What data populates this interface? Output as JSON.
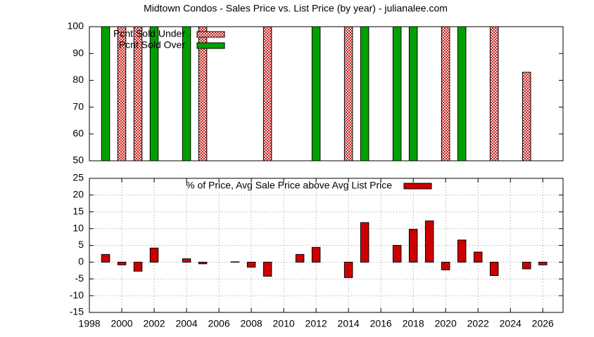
{
  "chart_data": [
    {
      "type": "bar",
      "title": "Midtown Condos - Sales Price vs. List Price (by year) - julianalee.com",
      "x": [
        1999,
        2000,
        2001,
        2002,
        2003,
        2004,
        2005,
        2006,
        2007,
        2008,
        2009,
        2010,
        2011,
        2012,
        2013,
        2014,
        2015,
        2016,
        2017,
        2018,
        2019,
        2020,
        2021,
        2022,
        2023,
        2024,
        2025,
        2026
      ],
      "series": [
        {
          "name": "Pcnt Sold Under",
          "color": "#c00000",
          "pattern": "hatch",
          "values": [
            null,
            100,
            100,
            null,
            null,
            null,
            100,
            null,
            null,
            null,
            100,
            null,
            null,
            null,
            null,
            100,
            null,
            null,
            null,
            null,
            null,
            100,
            null,
            null,
            100,
            null,
            83,
            null
          ]
        },
        {
          "name": "Pcnt Sold Over",
          "color": "#00a000",
          "values": [
            100,
            null,
            null,
            100,
            null,
            100,
            null,
            null,
            null,
            null,
            null,
            null,
            null,
            100,
            null,
            null,
            100,
            null,
            100,
            100,
            null,
            null,
            100,
            null,
            null,
            null,
            null,
            null
          ]
        }
      ],
      "xlim": [
        1998,
        2027.25
      ],
      "ylim": [
        50,
        100
      ],
      "yticks": [
        50,
        60,
        70,
        80,
        90,
        100
      ],
      "grid": false,
      "legend": "top-left"
    },
    {
      "type": "bar",
      "x": [
        1999,
        2000,
        2001,
        2002,
        2003,
        2004,
        2005,
        2006,
        2007,
        2008,
        2009,
        2010,
        2011,
        2012,
        2013,
        2014,
        2015,
        2016,
        2017,
        2018,
        2019,
        2020,
        2021,
        2022,
        2023,
        2024,
        2025,
        2026
      ],
      "series": [
        {
          "name": "% of Price, Avg Sale Price above Avg List Price",
          "color": "#cc0000",
          "values": [
            2.3,
            -0.8,
            -2.7,
            4.2,
            0,
            1,
            -0.5,
            null,
            0.1,
            -1.5,
            -4.2,
            null,
            2.3,
            4.4,
            null,
            -4.6,
            11.8,
            null,
            5,
            9.8,
            12.3,
            -2.3,
            6.6,
            3,
            -4,
            null,
            -2,
            -0.8
          ]
        }
      ],
      "xlim": [
        1998,
        2027.25
      ],
      "ylim": [
        -15,
        25
      ],
      "yticks": [
        -15,
        -10,
        -5,
        0,
        5,
        10,
        15,
        20,
        25
      ],
      "xticks": [
        1998,
        2000,
        2002,
        2004,
        2006,
        2008,
        2010,
        2012,
        2014,
        2016,
        2018,
        2020,
        2022,
        2024,
        2026
      ],
      "grid": true,
      "legend": "top-center"
    }
  ]
}
